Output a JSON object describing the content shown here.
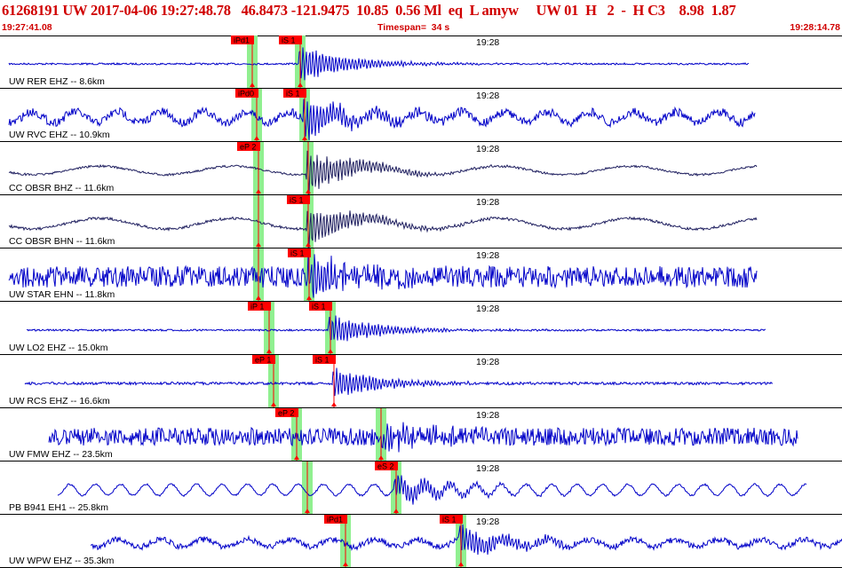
{
  "header": {
    "title": "61268191 UW 2017-04-06 19:27:48.78   46.8473 -121.9475  10.85  0.56 Ml  eq  L amyw     UW 01  H   2  -  H C3    8.98  1.87",
    "start_time": "19:27:41.08",
    "timespan": "Timespan=  34 s",
    "end_time": "19:28:14.78"
  },
  "colors": {
    "trace_blue": "#0000c8",
    "trace_dark": "#202060",
    "pick_red": "#ff0000",
    "window_green": "#90f090",
    "header_red": "#d00000"
  },
  "traces": [
    {
      "label": "UW RER EHZ -- 8.6km",
      "time_mark": "19:28",
      "color": "blue",
      "picks": [
        {
          "label": "iPd1",
          "pos": 0.3,
          "green": true
        },
        {
          "label": "iS 1",
          "pos": 0.357,
          "green": true
        }
      ]
    },
    {
      "label": "UW RVC EHZ -- 10.9km",
      "time_mark": "19:28",
      "color": "blue",
      "picks": [
        {
          "label": "iPd0",
          "pos": 0.305,
          "green": true
        },
        {
          "label": "iS 1",
          "pos": 0.362,
          "green": true
        }
      ]
    },
    {
      "label": "CC OBSR BHZ -- 11.6km",
      "time_mark": "19:28",
      "color": "dark",
      "picks": [
        {
          "label": "eP 2",
          "pos": 0.307,
          "green": true
        },
        {
          "label": "",
          "pos": 0.366,
          "green": true
        }
      ]
    },
    {
      "label": "CC OBSR BHN -- 11.6km",
      "time_mark": "19:28",
      "color": "dark",
      "picks": [
        {
          "label": "",
          "pos": 0.307,
          "green": true
        },
        {
          "label": "iS 1",
          "pos": 0.366,
          "green": true
        }
      ]
    },
    {
      "label": "UW STAR EHN -- 11.8km",
      "time_mark": "19:28",
      "color": "blue",
      "picks": [
        {
          "label": "",
          "pos": 0.307,
          "green": true
        },
        {
          "label": "iS 1",
          "pos": 0.367,
          "green": true
        }
      ]
    },
    {
      "label": "UW LO2 EHZ -- 15.0km",
      "time_mark": "19:28",
      "color": "blue",
      "picks": [
        {
          "label": "iP 1",
          "pos": 0.32,
          "green": true
        },
        {
          "label": "iS 1",
          "pos": 0.392,
          "green": true
        }
      ]
    },
    {
      "label": "UW RCS EHZ -- 16.6km",
      "time_mark": "19:28",
      "color": "blue",
      "picks": [
        {
          "label": "eP 1",
          "pos": 0.325,
          "green": true
        },
        {
          "label": "iS 1",
          "pos": 0.397,
          "green": false
        }
      ]
    },
    {
      "label": "UW FMW EHZ -- 23.5km",
      "time_mark": "19:28",
      "color": "blue",
      "picks": [
        {
          "label": "eP 2",
          "pos": 0.352,
          "green": true
        },
        {
          "label": "",
          "pos": 0.453,
          "green": true
        }
      ]
    },
    {
      "label": "PB B941 EH1 -- 25.8km",
      "time_mark": "19:28",
      "color": "blue",
      "picks": [
        {
          "label": "",
          "pos": 0.365,
          "green": true
        },
        {
          "label": "eS 2",
          "pos": 0.47,
          "green": true
        }
      ]
    },
    {
      "label": "UW WPW EHZ -- 35.3km",
      "time_mark": "19:28",
      "color": "blue",
      "picks": [
        {
          "label": "iPd1",
          "pos": 0.41,
          "green": true
        },
        {
          "label": "iS 1",
          "pos": 0.547,
          "green": true
        }
      ]
    }
  ]
}
